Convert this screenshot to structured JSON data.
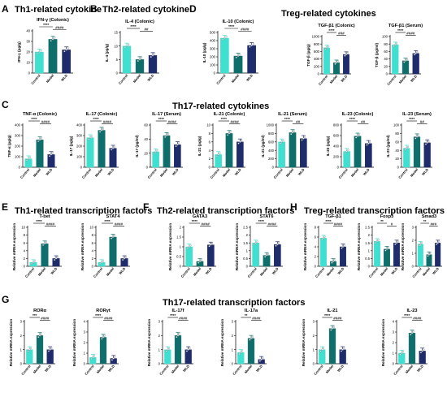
{
  "colors": {
    "control": "#40e0d0",
    "model": "#0e6e6b",
    "wld": "#1f2c6b",
    "axis": "#000000"
  },
  "groups": [
    "Control",
    "Model",
    "WLD"
  ],
  "panels": [
    {
      "letter": "A",
      "title": "Th1-related cytokine"
    },
    {
      "letter": "B",
      "title": "Th2-related cytokine"
    },
    {
      "letter": "D",
      "title": "Treg-related cytokines"
    },
    {
      "letter": "C",
      "title": "Th17-related cytokines"
    },
    {
      "letter": "E",
      "title": "Th1-related transcription factors"
    },
    {
      "letter": "F",
      "title": "Th2-related transcription factors"
    },
    {
      "letter": "H",
      "title": "Treg-related transcription factors"
    },
    {
      "letter": "G",
      "title": "Th17-related transcription factors"
    }
  ],
  "chart_data": [
    {
      "type": "bar",
      "title": "IFN-γ (Colonic)",
      "ylabel": "IFN-γ (pg/g)",
      "categories": [
        "Control",
        "Model",
        "WLD"
      ],
      "values": [
        20,
        32,
        22
      ],
      "ylim": [
        0,
        40
      ],
      "ticks": [
        0,
        10,
        20,
        30,
        40
      ],
      "sig": [
        "****",
        "####"
      ]
    },
    {
      "type": "bar",
      "title": "IL-4 (Colonic)",
      "ylabel": "IL-4 (pg/g)",
      "categories": [
        "Control",
        "Model",
        "WLD"
      ],
      "values": [
        10,
        5,
        6.5
      ],
      "ylim": [
        0,
        15
      ],
      "ticks": [
        0,
        5,
        10,
        15
      ],
      "sig": [
        "****",
        "##"
      ]
    },
    {
      "type": "bar",
      "title": "IL-10 (Colonic)",
      "ylabel": "IL-10 (pg/g)",
      "categories": [
        "Control",
        "Model",
        "WLD"
      ],
      "values": [
        430,
        210,
        340
      ],
      "ylim": [
        0,
        500
      ],
      "ticks": [
        0,
        100,
        200,
        300,
        400,
        500
      ],
      "sig": [
        "****",
        "####"
      ]
    },
    {
      "type": "bar",
      "title": "TGF-β1 (Colonic)",
      "ylabel": "TGF-β (pg/g)",
      "categories": [
        "Control",
        "Model",
        "WLD"
      ],
      "values": [
        700,
        300,
        520
      ],
      "ylim": [
        0,
        1000
      ],
      "ticks": [
        0,
        200,
        400,
        600,
        800,
        1000
      ],
      "sig": [
        "****",
        "###"
      ]
    },
    {
      "type": "bar",
      "title": "TGF-β1 (Serum)",
      "ylabel": "TGF-β (pg/ml)",
      "categories": [
        "Control",
        "Model",
        "WLD"
      ],
      "values": [
        78,
        35,
        55
      ],
      "ylim": [
        0,
        100
      ],
      "ticks": [
        0,
        20,
        40,
        60,
        80,
        100
      ],
      "sig": [
        "****",
        "####"
      ]
    },
    {
      "type": "bar",
      "title": "TNF-α (Colonic)",
      "ylabel": "TNF-α (pg/g)",
      "categories": [
        "Control",
        "Model",
        "WLD"
      ],
      "values": [
        80,
        260,
        120
      ],
      "ylim": [
        0,
        400
      ],
      "ticks": [
        0,
        100,
        200,
        300,
        400
      ],
      "sig": [
        "****",
        "####"
      ]
    },
    {
      "type": "bar",
      "title": "IL-17 (Colonic)",
      "ylabel": "IL-17 (pg/g)",
      "categories": [
        "Control",
        "Model",
        "WLD"
      ],
      "values": [
        280,
        350,
        180
      ],
      "ylim": [
        0,
        400
      ],
      "ticks": [
        0,
        100,
        200,
        300,
        400
      ],
      "sig": [
        "****",
        "####"
      ]
    },
    {
      "type": "bar",
      "title": "IL-17 (Serum)",
      "ylabel": "IL-17 (pg/ml)",
      "categories": [
        "Control",
        "Model",
        "WLD"
      ],
      "values": [
        22,
        45,
        32
      ],
      "ylim": [
        0,
        60
      ],
      "ticks": [
        0,
        20,
        40,
        60
      ],
      "sig": [
        "****",
        "####"
      ]
    },
    {
      "type": "bar",
      "title": "IL-21 (Colonic)",
      "ylabel": "IL-21 (pg/g)",
      "categories": [
        "Control",
        "Model",
        "WLD"
      ],
      "values": [
        3,
        8,
        6
      ],
      "ylim": [
        0,
        10
      ],
      "ticks": [
        0,
        2,
        4,
        6,
        8,
        10
      ],
      "sig": [
        "****",
        "####"
      ]
    },
    {
      "type": "bar",
      "title": "IL-21 (Serum)",
      "ylabel": "IL-21 (pg/ml)",
      "categories": [
        "Control",
        "Model",
        "WLD"
      ],
      "values": [
        600,
        820,
        680
      ],
      "ylim": [
        0,
        1000
      ],
      "ticks": [
        0,
        200,
        400,
        600,
        800,
        1000
      ],
      "sig": [
        "****",
        "##"
      ]
    },
    {
      "type": "bar",
      "title": "IL-23 (Colonic)",
      "ylabel": "IL-23 (pg/g)",
      "categories": [
        "Control",
        "Model",
        "WLD"
      ],
      "values": [
        300,
        590,
        450
      ],
      "ylim": [
        0,
        800
      ],
      "ticks": [
        0,
        200,
        400,
        600,
        800
      ],
      "sig": [
        "****",
        "##"
      ]
    },
    {
      "type": "bar",
      "title": "IL-23 (Serum)",
      "ylabel": "IL-23 (pg/ml)",
      "categories": [
        "Control",
        "Model",
        "WLD"
      ],
      "values": [
        45,
        72,
        58
      ],
      "ylim": [
        0,
        100
      ],
      "ticks": [
        0,
        20,
        40,
        60,
        80,
        100
      ],
      "sig": [
        "****",
        "##"
      ]
    },
    {
      "type": "bar",
      "title": "T-bet",
      "ylabel": "Relative mRNA expression",
      "categories": [
        "Control",
        "Model",
        "WLD"
      ],
      "values": [
        1.0,
        5.8,
        2.0
      ],
      "ylim": [
        0,
        10
      ],
      "ticks": [
        0,
        2,
        4,
        6,
        8,
        10
      ],
      "sig": [
        "****",
        "####"
      ]
    },
    {
      "type": "bar",
      "title": "STAT4",
      "ylabel": "Relative mRNA expression",
      "categories": [
        "Control",
        "Model",
        "WLD"
      ],
      "values": [
        1.0,
        7.5,
        2.0
      ],
      "ylim": [
        0,
        10
      ],
      "ticks": [
        0,
        2,
        4,
        6,
        8,
        10
      ],
      "sig": [
        "****",
        "####"
      ]
    },
    {
      "type": "bar",
      "title": "GATA3",
      "ylabel": "Relative mRNA expression",
      "categories": [
        "Control",
        "Model",
        "WLD"
      ],
      "values": [
        1.0,
        0.25,
        1.1
      ],
      "ylim": [
        0,
        2.0
      ],
      "ticks": [
        0,
        0.5,
        1.0,
        1.5,
        2.0
      ],
      "sig": [
        "****",
        "####"
      ]
    },
    {
      "type": "bar",
      "title": "STAT6",
      "ylabel": "Relative mRNA expression",
      "categories": [
        "Control",
        "Model",
        "WLD"
      ],
      "values": [
        1.5,
        0.7,
        1.4
      ],
      "ylim": [
        0,
        2.5
      ],
      "ticks": [
        0,
        0.5,
        1.0,
        1.5,
        2.0,
        2.5
      ],
      "sig": [
        "****",
        "####"
      ]
    },
    {
      "type": "bar",
      "title": "TGF-β1",
      "ylabel": "Relative mRNA expression",
      "categories": [
        "Control",
        "Model",
        "WLD"
      ],
      "values": [
        5.8,
        1.0,
        4.0
      ],
      "ylim": [
        0,
        8
      ],
      "ticks": [
        0,
        2,
        4,
        6,
        8
      ],
      "sig": [
        "****",
        "####"
      ]
    },
    {
      "type": "bar",
      "title": "Foxp3",
      "ylabel": "Relative mRNA expression",
      "categories": [
        "Control",
        "Model",
        "WLD"
      ],
      "values": [
        1.6,
        1.1,
        1.5
      ],
      "ylim": [
        0,
        2.5
      ],
      "ticks": [
        0,
        0.5,
        1.0,
        1.5,
        2.0,
        2.5
      ],
      "sig": [
        "**",
        "#"
      ]
    },
    {
      "type": "bar",
      "title": "Smad3",
      "ylabel": "Relative mRNA expression",
      "categories": [
        "Control",
        "Model",
        "WLD"
      ],
      "values": [
        1.7,
        0.9,
        1.8
      ],
      "ylim": [
        0,
        3
      ],
      "ticks": [
        0,
        1,
        2,
        3
      ],
      "sig": [
        "**",
        "###"
      ]
    },
    {
      "type": "bar",
      "title": "RORα",
      "ylabel": "Relative mRNA expression",
      "categories": [
        "Control",
        "Model",
        "WLD"
      ],
      "values": [
        1.0,
        2.0,
        1.0
      ],
      "ylim": [
        0,
        3
      ],
      "ticks": [
        0,
        1,
        2,
        3
      ],
      "sig": [
        "***",
        "####"
      ]
    },
    {
      "type": "bar",
      "title": "RORγt",
      "ylabel": "Relative mRNA expression",
      "categories": [
        "Control",
        "Model",
        "WLD"
      ],
      "values": [
        0.6,
        2.5,
        0.5
      ],
      "ylim": [
        0,
        4
      ],
      "ticks": [
        0,
        1,
        2,
        3,
        4
      ],
      "sig": [
        "****",
        "####"
      ]
    },
    {
      "type": "bar",
      "title": "IL-17f",
      "ylabel": "Relative mRNA expression",
      "categories": [
        "Control",
        "Model",
        "WLD"
      ],
      "values": [
        1.0,
        2.0,
        1.0
      ],
      "ylim": [
        0,
        3
      ],
      "ticks": [
        0,
        1,
        2,
        3
      ],
      "sig": [
        "****",
        "####"
      ]
    },
    {
      "type": "bar",
      "title": "IL-17a",
      "ylabel": "Relative mRNA expression",
      "categories": [
        "Control",
        "Model",
        "WLD"
      ],
      "values": [
        0.8,
        1.8,
        0.3
      ],
      "ylim": [
        0,
        3
      ],
      "ticks": [
        0,
        1,
        2,
        3
      ],
      "sig": [
        "**",
        "####"
      ]
    },
    {
      "type": "bar",
      "title": "IL-21",
      "ylabel": "Relative mRNA expression",
      "categories": [
        "Control",
        "Model",
        "WLD"
      ],
      "values": [
        1.0,
        2.5,
        1.0
      ],
      "ylim": [
        0,
        3
      ],
      "ticks": [
        0,
        1,
        2,
        3
      ],
      "sig": [
        "****",
        "####"
      ]
    },
    {
      "type": "bar",
      "title": "IL-23",
      "ylabel": "Relative mRNA expression",
      "categories": [
        "Control",
        "Model",
        "WLD"
      ],
      "values": [
        1.0,
        2.9,
        1.2
      ],
      "ylim": [
        0,
        4
      ],
      "ticks": [
        0,
        1,
        2,
        3,
        4
      ],
      "sig": [
        "****",
        "####"
      ]
    }
  ]
}
